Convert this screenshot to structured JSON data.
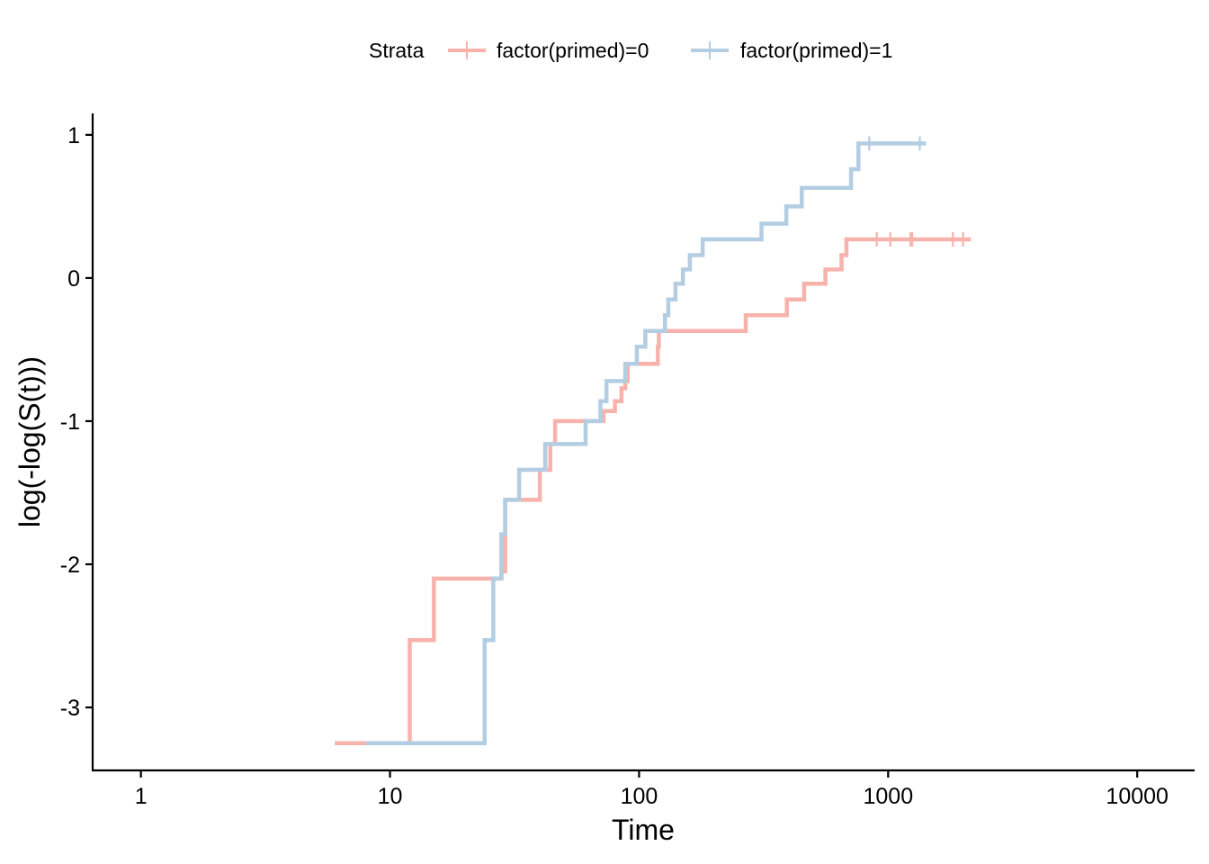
{
  "chart_data": {
    "type": "line",
    "step": true,
    "xlabel": "Time",
    "ylabel": "log(-log(S(t)))",
    "x_scale": "log10",
    "xlim": [
      0.64,
      17000
    ],
    "ylim": [
      -3.44,
      1.15
    ],
    "x_ticks": [
      1,
      10,
      100,
      1000,
      10000
    ],
    "x_tick_labels": [
      "1",
      "10",
      "100",
      "1000",
      "10000"
    ],
    "y_ticks": [
      1,
      0,
      -1,
      -2,
      -3
    ],
    "y_tick_labels": [
      "1",
      "0",
      "-1",
      "-2",
      "-3"
    ],
    "grid": false,
    "legend": {
      "title": "Strata",
      "position": "top"
    },
    "series": [
      {
        "name": "factor(primed)=0",
        "color": "#F8B2AC",
        "points": [
          [
            6,
            -3.25
          ],
          [
            12,
            -2.53
          ],
          [
            15,
            -2.1
          ],
          [
            28,
            -2.05
          ],
          [
            29,
            -1.55
          ],
          [
            38,
            -1.55
          ],
          [
            40,
            -1.34
          ],
          [
            44,
            -1.16
          ],
          [
            46,
            -1.0
          ],
          [
            68,
            -1.0
          ],
          [
            72,
            -0.93
          ],
          [
            80,
            -0.86
          ],
          [
            85,
            -0.77
          ],
          [
            88,
            -0.72
          ],
          [
            90,
            -0.6
          ],
          [
            117,
            -0.6
          ],
          [
            119,
            -0.48
          ],
          [
            120,
            -0.37
          ],
          [
            265,
            -0.37
          ],
          [
            268,
            -0.26
          ],
          [
            390,
            -0.26
          ],
          [
            392,
            -0.15
          ],
          [
            460,
            -0.04
          ],
          [
            560,
            0.06
          ],
          [
            650,
            0.16
          ],
          [
            680,
            0.27
          ],
          [
            2150,
            0.27
          ]
        ],
        "censored": [
          900,
          1020,
          1230,
          1250,
          1820,
          2000
        ]
      },
      {
        "name": "factor(primed)=1",
        "color": "#B3CDE3",
        "points": [
          [
            8,
            -3.25
          ],
          [
            24,
            -2.53
          ],
          [
            26,
            -2.1
          ],
          [
            28,
            -1.79
          ],
          [
            29,
            -1.55
          ],
          [
            33,
            -1.34
          ],
          [
            42,
            -1.16
          ],
          [
            61,
            -1.0
          ],
          [
            70,
            -0.86
          ],
          [
            74,
            -0.72
          ],
          [
            88,
            -0.6
          ],
          [
            98,
            -0.48
          ],
          [
            106,
            -0.37
          ],
          [
            127,
            -0.26
          ],
          [
            131,
            -0.15
          ],
          [
            140,
            -0.04
          ],
          [
            150,
            0.06
          ],
          [
            160,
            0.16
          ],
          [
            180,
            0.27
          ],
          [
            310,
            0.38
          ],
          [
            390,
            0.5
          ],
          [
            450,
            0.63
          ],
          [
            710,
            0.76
          ],
          [
            760,
            0.94
          ],
          [
            1420,
            0.94
          ]
        ],
        "censored": [
          840,
          1340
        ]
      }
    ]
  }
}
